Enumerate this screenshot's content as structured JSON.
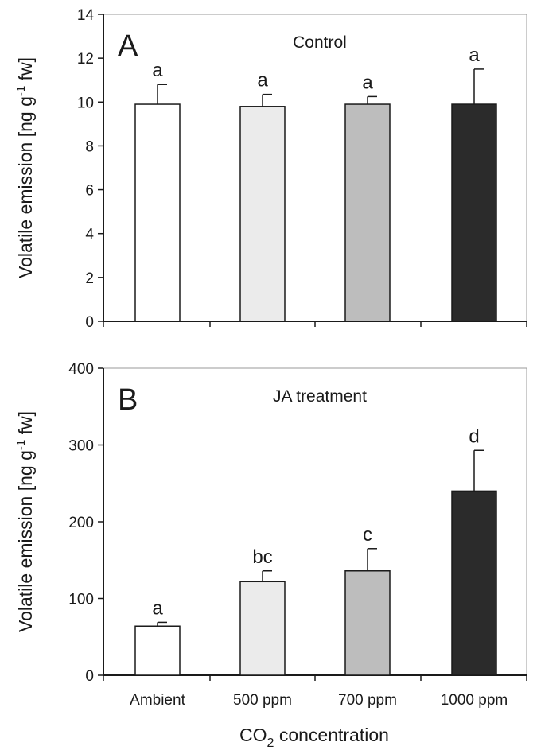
{
  "figure": {
    "xlabel_main": "CO",
    "xlabel_sub": "2",
    "xlabel_rest": " concentration"
  },
  "chart_data": [
    {
      "type": "bar",
      "panel_letter": "A",
      "title": "Control",
      "ylabel_parts": {
        "before": "Volatile emission [ng g",
        "sup": "-1",
        "after": " fw]"
      },
      "ylim": [
        0,
        14
      ],
      "yticks": [
        0,
        2,
        4,
        6,
        8,
        10,
        12,
        14
      ],
      "categories": [
        "Ambient",
        "500 ppm",
        "700 ppm",
        "1000 ppm"
      ],
      "show_category_labels": false,
      "values": [
        9.9,
        9.8,
        9.9,
        9.9
      ],
      "errors": [
        0.9,
        0.55,
        0.35,
        1.6
      ],
      "significance": [
        "a",
        "a",
        "a",
        "a"
      ],
      "colors": [
        "#ffffff",
        "#ebebeb",
        "#bdbdbd",
        "#2b2b2b"
      ]
    },
    {
      "type": "bar",
      "panel_letter": "B",
      "title": "JA treatment",
      "ylabel_parts": {
        "before": "Volatile emission [ng g",
        "sup": "-1",
        "after": " fw]"
      },
      "ylim": [
        0,
        400
      ],
      "yticks": [
        0,
        100,
        200,
        300,
        400
      ],
      "categories": [
        "Ambient",
        "500 ppm",
        "700 ppm",
        "1000 ppm"
      ],
      "show_category_labels": true,
      "values": [
        64,
        122,
        136,
        240
      ],
      "errors": [
        5,
        14,
        29,
        53
      ],
      "significance": [
        "a",
        "bc",
        "c",
        "d"
      ],
      "colors": [
        "#ffffff",
        "#ebebeb",
        "#bdbdbd",
        "#2b2b2b"
      ]
    }
  ]
}
